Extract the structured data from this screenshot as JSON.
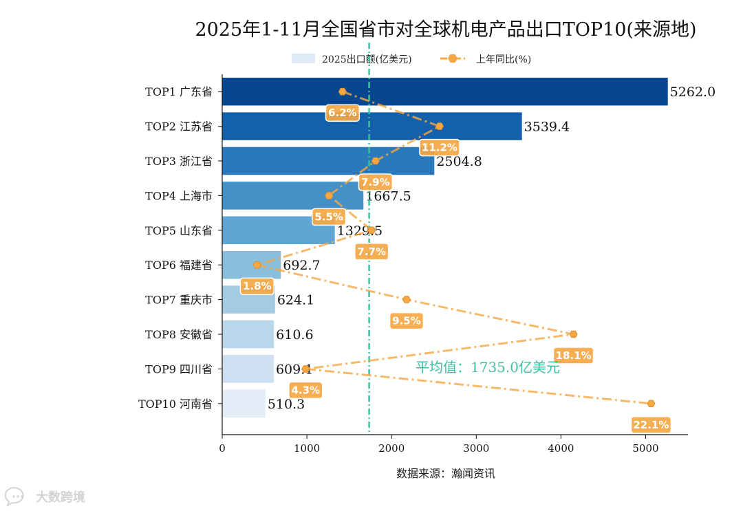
{
  "chart_data": {
    "type": "bar",
    "orientation": "horizontal",
    "title": "2025年1-11月全国省市对全球机电产品出口TOP10(来源地)",
    "categories": [
      "TOP1 广东省",
      "TOP2 江苏省",
      "TOP3 浙江省",
      "TOP4 上海市",
      "TOP5 山东省",
      "TOP6 福建省",
      "TOP7 重庆市",
      "TOP8 安徽省",
      "TOP9 四川省",
      "TOP10 河南省"
    ],
    "series": [
      {
        "name": "2025出口额(亿美元)",
        "type": "bar",
        "values": [
          5262.0,
          3539.4,
          2504.8,
          1667.5,
          1329.5,
          692.7,
          624.1,
          610.6,
          609.1,
          510.3
        ],
        "value_labels": [
          "5262.0",
          "3539.4",
          "2504.8",
          "1667.5",
          "1329.5",
          "692.7",
          "624.1",
          "610.6",
          "609.1",
          "510.3"
        ],
        "colors": [
          "#08478f",
          "#1460aa",
          "#2a7abb",
          "#4490c7",
          "#5fa6d2",
          "#89bedc",
          "#a3cbe3",
          "#bad6eb",
          "#cde0f1",
          "#e2edf8"
        ]
      },
      {
        "name": "上年同比(%)",
        "type": "line",
        "values": [
          6.2,
          11.2,
          7.9,
          5.5,
          7.7,
          1.8,
          9.5,
          18.1,
          4.3,
          22.1
        ],
        "value_labels": [
          "6.2%",
          "11.2%",
          "7.9%",
          "5.5%",
          "7.7%",
          "1.8%",
          "9.5%",
          "18.1%",
          "4.3%",
          "22.1%"
        ],
        "color": "#f5a743",
        "style": "dash-dot",
        "marker": "hexagon"
      }
    ],
    "average_line": {
      "value": 1735.0,
      "label": "平均值：1735.0亿美元",
      "color": "#3dbfa2"
    },
    "xlim": [
      0,
      5500
    ],
    "xticks": [
      0,
      1000,
      2000,
      3000,
      4000,
      5000
    ],
    "xticklabels": [
      "0",
      "1000",
      "2000",
      "3000",
      "4000",
      "5000"
    ],
    "pct_xlim": [
      0,
      24
    ],
    "xlabel": "数据来源：瀚闻资讯",
    "legend_position": "top",
    "grid": false
  },
  "watermark": {
    "text": "大数跨境",
    "icon": "speech-bubble-icon"
  }
}
